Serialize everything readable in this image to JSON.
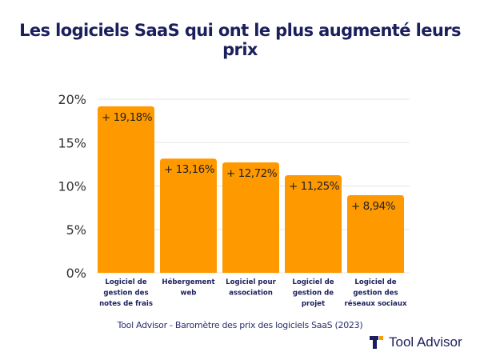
{
  "chart_data": {
    "type": "bar",
    "title": "Les logiciels SaaS qui ont le plus augmenté leurs prix",
    "categories": [
      [
        "Logiciel de",
        "gestion des",
        "notes de frais"
      ],
      [
        "Hébergement",
        "web"
      ],
      [
        "Logiciel pour",
        "association"
      ],
      [
        "Logiciel de",
        "gestion de",
        "projet"
      ],
      [
        "Logiciel de",
        "gestion des",
        "réseaux sociaux"
      ]
    ],
    "values": [
      19.18,
      13.16,
      12.72,
      11.25,
      8.94
    ],
    "data_labels": [
      "+ 19,18%",
      "+ 13,16%",
      "+ 12,72%",
      "+ 11,25%",
      "+ 8,94%"
    ],
    "yticks": [
      0,
      5,
      10,
      15,
      20
    ],
    "ytick_labels": [
      "0%",
      "5%",
      "10%",
      "15%",
      "20%"
    ],
    "ylim": [
      0,
      20
    ],
    "grid": true,
    "bar_color": "#ff9900",
    "xlabel": "",
    "ylabel": "",
    "source": "Tool Advisor - Baromètre des prix des logiciels SaaS (2023)"
  },
  "logo": {
    "text": "Tool Advisor",
    "colors": {
      "dark": "#1b1f5c",
      "accent": "#ff9900"
    }
  }
}
